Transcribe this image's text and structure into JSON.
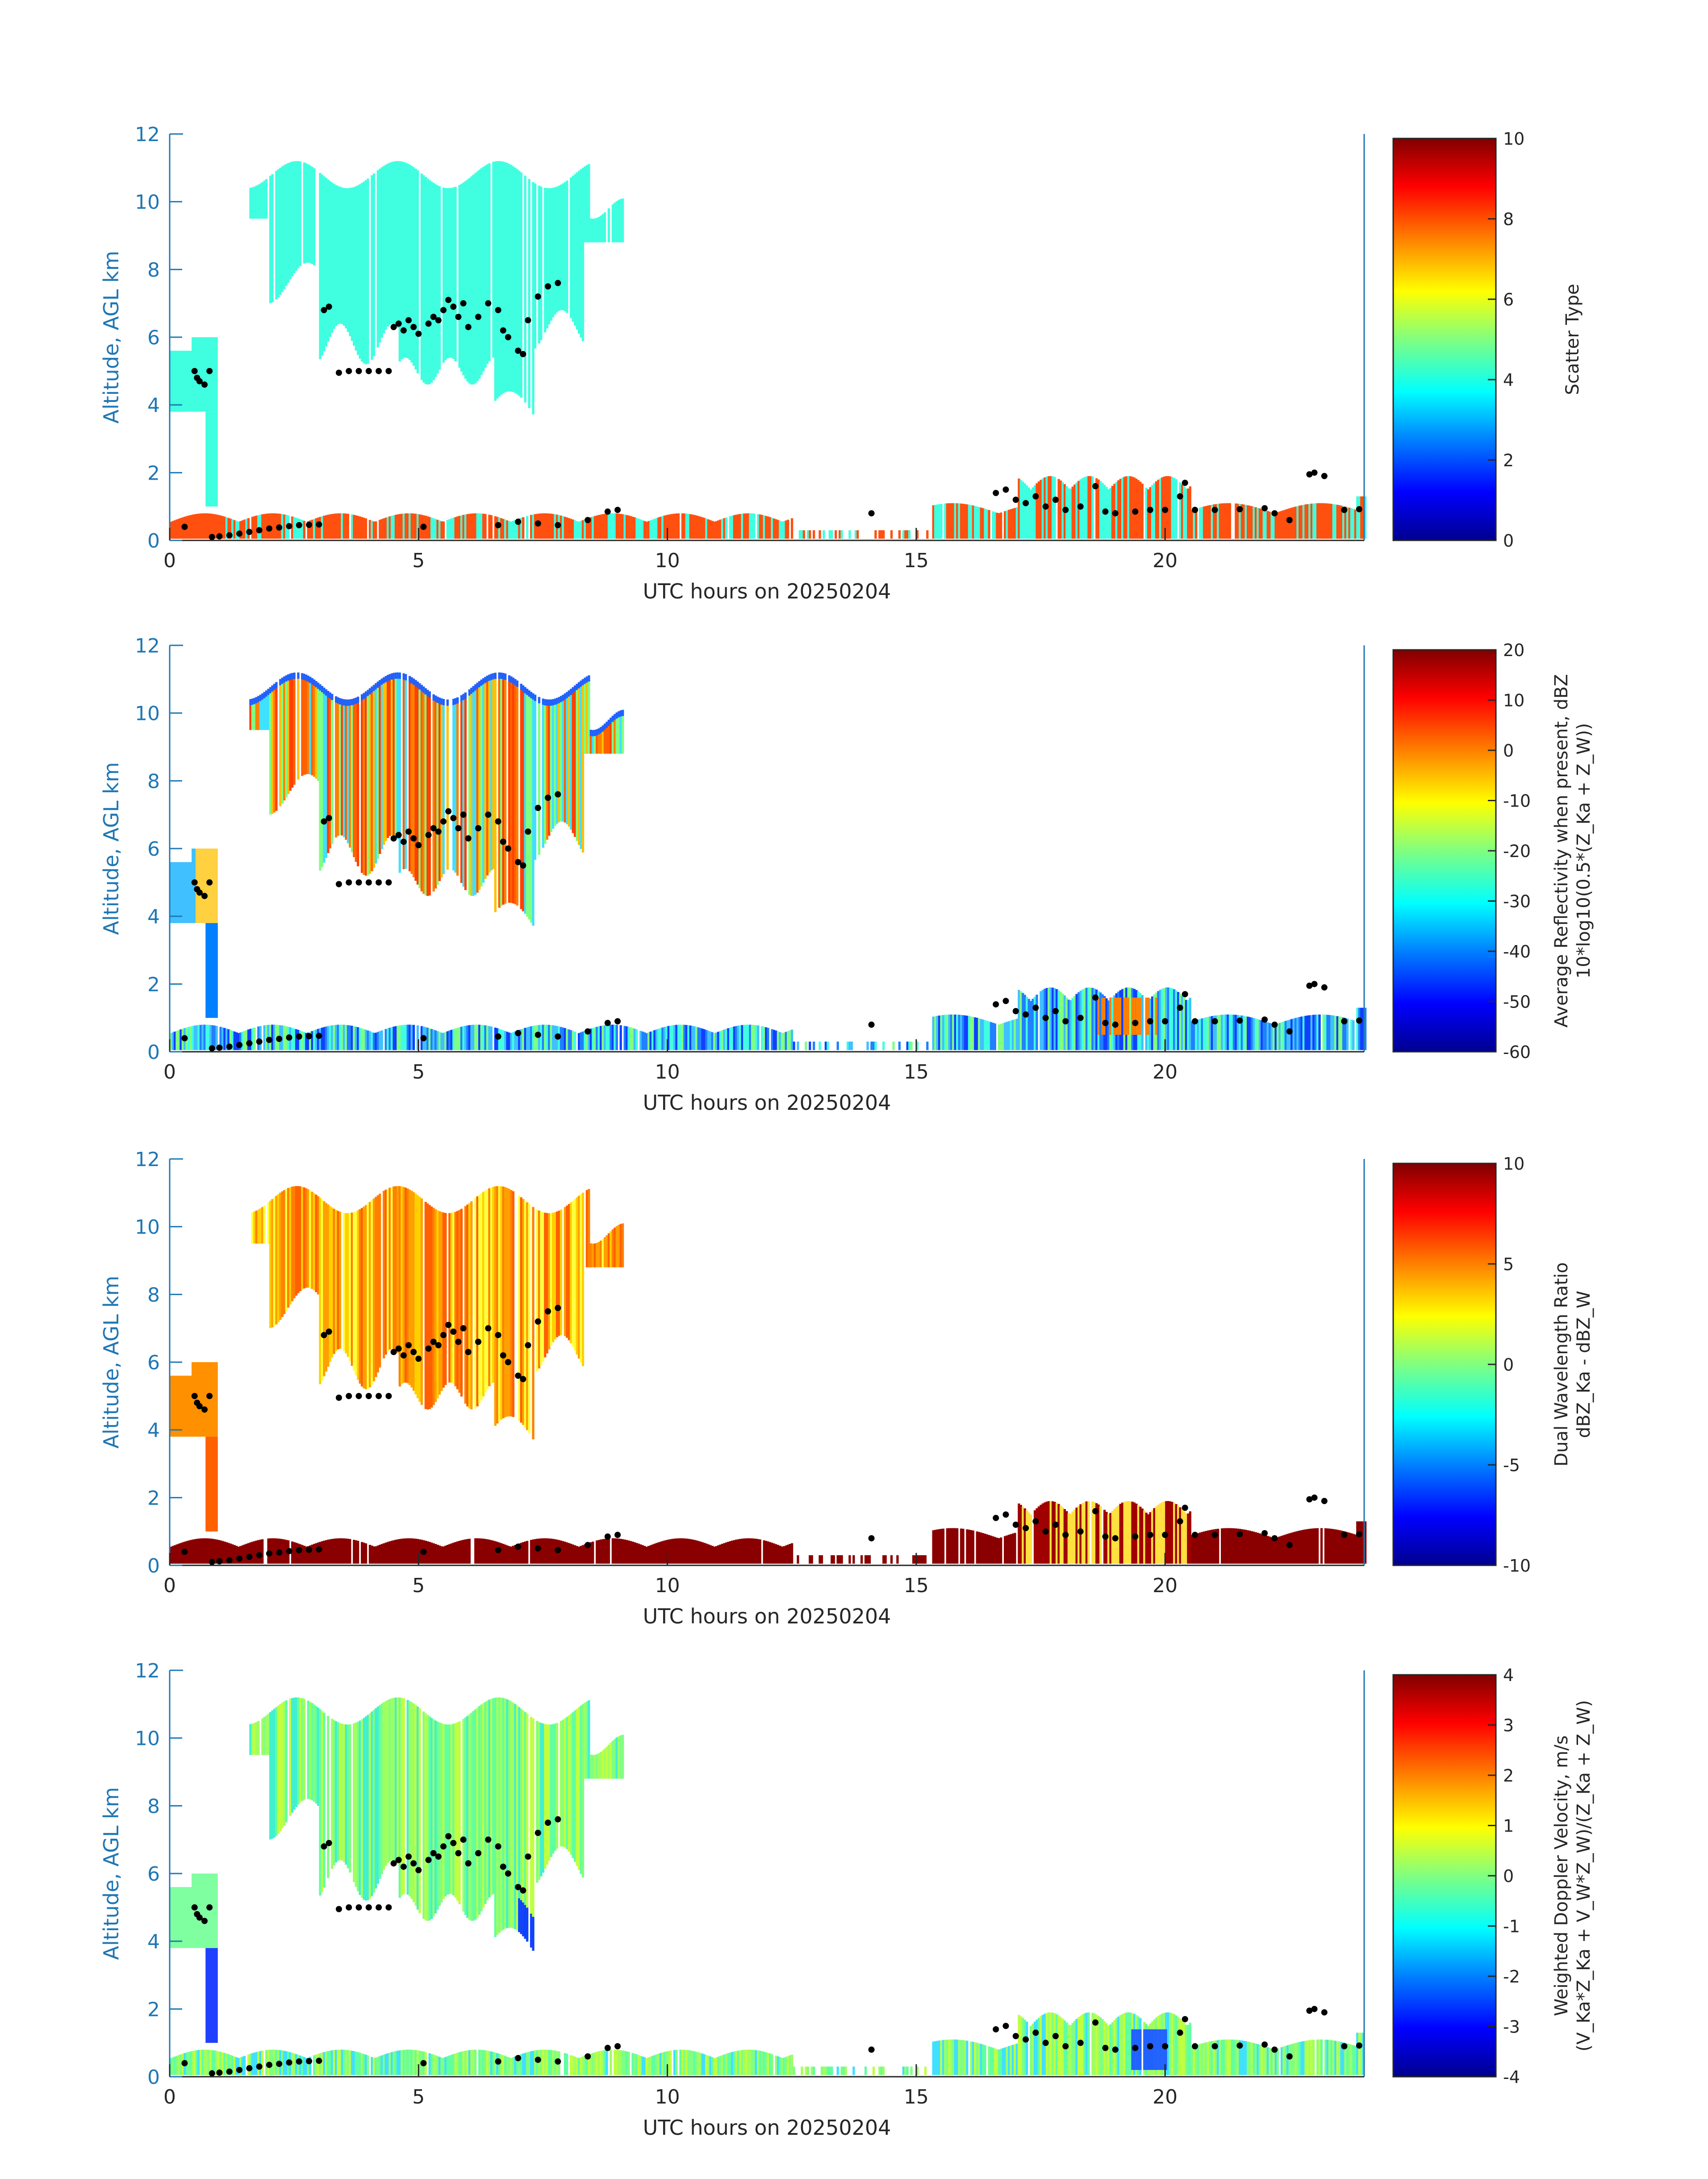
{
  "colors": {
    "axis_blue": "#1f77b4",
    "black": "#000000",
    "jet": [
      "#00008f",
      "#0000ff",
      "#0080ff",
      "#00ffff",
      "#80ff80",
      "#ffff00",
      "#ff8000",
      "#ff0000",
      "#800000"
    ]
  },
  "chart_data": [
    {
      "type": "heatmap",
      "panel": 1,
      "x_axis": {
        "label": "UTC hours on 20250204",
        "range": [
          0,
          24
        ],
        "ticks": [
          0,
          5,
          10,
          15,
          20
        ],
        "tick_labels": [
          "0",
          "5",
          "10",
          "15",
          "20"
        ]
      },
      "y_axis": {
        "label": "Altitude, AGL km",
        "range": [
          0,
          12
        ],
        "ticks": [
          0,
          2,
          4,
          6,
          8,
          10,
          12
        ],
        "tick_labels": [
          "0",
          "2",
          "4",
          "6",
          "8",
          "10",
          "12"
        ]
      },
      "colorbar": {
        "label": "Scatter Type",
        "range": [
          0,
          10
        ],
        "ticks": [
          0,
          2,
          4,
          6,
          8,
          10
        ],
        "tick_labels": [
          "0",
          "2",
          "4",
          "6",
          "8",
          "10"
        ]
      },
      "description_values": {
        "upper_cloud_value": 3.8,
        "low_layer_value": 8.2
      }
    },
    {
      "type": "heatmap",
      "panel": 2,
      "x_axis": {
        "label": "UTC hours on 20250204",
        "range": [
          0,
          24
        ],
        "ticks": [
          0,
          5,
          10,
          15,
          20
        ],
        "tick_labels": [
          "0",
          "5",
          "10",
          "15",
          "20"
        ]
      },
      "y_axis": {
        "label": "Altitude, AGL km",
        "range": [
          0,
          12
        ],
        "ticks": [
          0,
          2,
          4,
          6,
          8,
          10,
          12
        ],
        "tick_labels": [
          "0",
          "2",
          "4",
          "6",
          "8",
          "10",
          "12"
        ]
      },
      "colorbar": {
        "label_line1": "Average Reflectivity when present, dBZ",
        "label_line2": "10*log10(0.5*(Z_Ka + Z_W))",
        "range": [
          -60,
          20
        ],
        "ticks": [
          -60,
          -50,
          -40,
          -30,
          -20,
          -10,
          0,
          10,
          20
        ],
        "tick_labels": [
          "-60",
          "-50",
          "-40",
          "-30",
          "-20",
          "-10",
          "0",
          "10",
          "20"
        ]
      }
    },
    {
      "type": "heatmap",
      "panel": 3,
      "x_axis": {
        "label": "UTC hours on 20250204",
        "range": [
          0,
          24
        ],
        "ticks": [
          0,
          5,
          10,
          15,
          20
        ],
        "tick_labels": [
          "0",
          "5",
          "10",
          "15",
          "20"
        ]
      },
      "y_axis": {
        "label": "Altitude, AGL km",
        "range": [
          0,
          12
        ],
        "ticks": [
          0,
          2,
          4,
          6,
          8,
          10,
          12
        ],
        "tick_labels": [
          "0",
          "2",
          "4",
          "6",
          "8",
          "10",
          "12"
        ]
      },
      "colorbar": {
        "label_line1": "Dual Wavelength Ratio",
        "label_line2": "dBZ_Ka - dBZ_W",
        "range": [
          -10,
          10
        ],
        "ticks": [
          -10,
          -5,
          0,
          5,
          10
        ],
        "tick_labels": [
          "-10",
          "-5",
          "0",
          "5",
          "10"
        ]
      }
    },
    {
      "type": "heatmap",
      "panel": 4,
      "x_axis": {
        "label": "UTC hours on 20250204",
        "range": [
          0,
          24
        ],
        "ticks": [
          0,
          5,
          10,
          15,
          20
        ],
        "tick_labels": [
          "0",
          "5",
          "10",
          "15",
          "20"
        ]
      },
      "y_axis": {
        "label": "Altitude, AGL km",
        "range": [
          0,
          12
        ],
        "ticks": [
          0,
          2,
          4,
          6,
          8,
          10,
          12
        ],
        "tick_labels": [
          "0",
          "2",
          "4",
          "6",
          "8",
          "10",
          "12"
        ]
      },
      "colorbar": {
        "label_line1": "Weighted Doppler Velocity, m/s",
        "label_line2": "(V_Ka*Z_Ka + V_W*Z_W)/(Z_Ka + Z_W)",
        "range": [
          -4,
          4
        ],
        "ticks": [
          -4,
          -3,
          -2,
          -1,
          0,
          1,
          2,
          3,
          4
        ],
        "tick_labels": [
          "-4",
          "-3",
          "-2",
          "-1",
          "0",
          "1",
          "2",
          "3",
          "4"
        ]
      }
    }
  ],
  "cloud_base_points": {
    "description": "black dots marking cloud base heights (hours, km)",
    "points": [
      [
        0.3,
        0.4
      ],
      [
        0.5,
        5.0
      ],
      [
        0.55,
        4.8
      ],
      [
        0.6,
        4.7
      ],
      [
        0.7,
        4.6
      ],
      [
        0.8,
        5.0
      ],
      [
        0.85,
        0.1
      ],
      [
        1.0,
        0.12
      ],
      [
        1.2,
        0.15
      ],
      [
        1.4,
        0.2
      ],
      [
        1.6,
        0.25
      ],
      [
        1.8,
        0.3
      ],
      [
        2.0,
        0.35
      ],
      [
        2.2,
        0.38
      ],
      [
        2.4,
        0.42
      ],
      [
        2.6,
        0.45
      ],
      [
        2.8,
        0.46
      ],
      [
        3.0,
        0.47
      ],
      [
        3.1,
        6.8
      ],
      [
        3.2,
        6.9
      ],
      [
        3.4,
        4.95
      ],
      [
        3.6,
        5.0
      ],
      [
        3.8,
        5.0
      ],
      [
        4.0,
        5.0
      ],
      [
        4.2,
        5.0
      ],
      [
        4.4,
        5.0
      ],
      [
        4.5,
        6.3
      ],
      [
        4.6,
        6.4
      ],
      [
        4.7,
        6.2
      ],
      [
        4.8,
        6.5
      ],
      [
        4.9,
        6.3
      ],
      [
        5.0,
        6.1
      ],
      [
        5.1,
        0.4
      ],
      [
        5.2,
        6.4
      ],
      [
        5.3,
        6.6
      ],
      [
        5.4,
        6.5
      ],
      [
        5.5,
        6.8
      ],
      [
        5.6,
        7.1
      ],
      [
        5.7,
        6.9
      ],
      [
        5.8,
        6.6
      ],
      [
        5.9,
        7.0
      ],
      [
        6.0,
        6.3
      ],
      [
        6.2,
        6.6
      ],
      [
        6.4,
        7.0
      ],
      [
        6.6,
        6.8
      ],
      [
        6.7,
        6.2
      ],
      [
        6.8,
        6.0
      ],
      [
        7.0,
        5.6
      ],
      [
        7.1,
        5.5
      ],
      [
        7.2,
        6.5
      ],
      [
        7.4,
        7.2
      ],
      [
        7.6,
        7.5
      ],
      [
        7.8,
        7.6
      ],
      [
        6.6,
        0.45
      ],
      [
        7.0,
        0.55
      ],
      [
        7.4,
        0.5
      ],
      [
        7.8,
        0.45
      ],
      [
        8.4,
        0.6
      ],
      [
        8.8,
        0.85
      ],
      [
        9.0,
        0.9
      ],
      [
        14.1,
        0.8
      ],
      [
        16.6,
        1.4
      ],
      [
        16.8,
        1.5
      ],
      [
        17.0,
        1.2
      ],
      [
        17.2,
        1.1
      ],
      [
        17.4,
        1.3
      ],
      [
        17.6,
        1.0
      ],
      [
        17.8,
        1.2
      ],
      [
        18.0,
        0.9
      ],
      [
        18.3,
        1.0
      ],
      [
        18.6,
        1.6
      ],
      [
        18.8,
        0.85
      ],
      [
        19.0,
        0.8
      ],
      [
        19.4,
        0.85
      ],
      [
        19.7,
        0.9
      ],
      [
        20.0,
        0.9
      ],
      [
        20.3,
        1.3
      ],
      [
        20.4,
        1.7
      ],
      [
        20.6,
        0.9
      ],
      [
        21.0,
        0.9
      ],
      [
        21.5,
        0.92
      ],
      [
        22.0,
        0.95
      ],
      [
        22.2,
        0.8
      ],
      [
        22.5,
        0.6
      ],
      [
        22.9,
        1.95
      ],
      [
        23.0,
        2.0
      ],
      [
        23.2,
        1.9
      ],
      [
        23.6,
        0.9
      ],
      [
        23.9,
        0.92
      ]
    ]
  }
}
